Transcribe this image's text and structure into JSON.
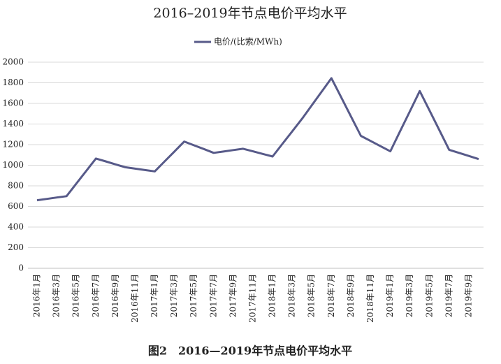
{
  "chart_data": {
    "type": "line",
    "title": "2016–2019年节点电价平均水平",
    "caption": "图2　2016—2019年节点电价平均水平",
    "categories": [
      "2016年1月",
      null,
      "2016年3月",
      null,
      "2016年5月",
      null,
      "2016年7月",
      null,
      "2016年9月",
      null,
      "2016年11月",
      null,
      "2017年1月",
      null,
      "2017年3月",
      null,
      "2017年5月",
      null,
      "2017年7月",
      null,
      "2017年9月",
      null,
      "2017年11月",
      null,
      "2018年1月",
      null,
      "2018年3月",
      null,
      "2018年5月",
      null,
      "2018年7月",
      null,
      "2018年9月",
      null,
      "2018年11月",
      null,
      "2019年1月",
      null,
      "2019年3月",
      null,
      "2019年5月",
      null,
      "2019年7月",
      null,
      "2019年9月",
      null
    ],
    "series": [
      {
        "name": "电价/(比索/MWh)",
        "color": "#575a89",
        "values": [
          660,
          673,
          687,
          700,
          822,
          943,
          1065,
          1037,
          1008,
          980,
          967,
          953,
          940,
          1037,
          1133,
          1230,
          1193,
          1157,
          1120,
          1133,
          1147,
          1160,
          1135,
          1110,
          1085,
          1207,
          1328,
          1450,
          1582,
          1713,
          1845,
          1658,
          1472,
          1285,
          1235,
          1185,
          1135,
          1330,
          1525,
          1720,
          1530,
          1340,
          1150,
          1120,
          1090,
          1060
        ]
      }
    ],
    "ylim": [
      0,
      2000
    ],
    "yticks": [
      0,
      200,
      400,
      600,
      800,
      1000,
      1200,
      1400,
      1600,
      1800,
      2000
    ],
    "grid": true,
    "legend": "top"
  }
}
